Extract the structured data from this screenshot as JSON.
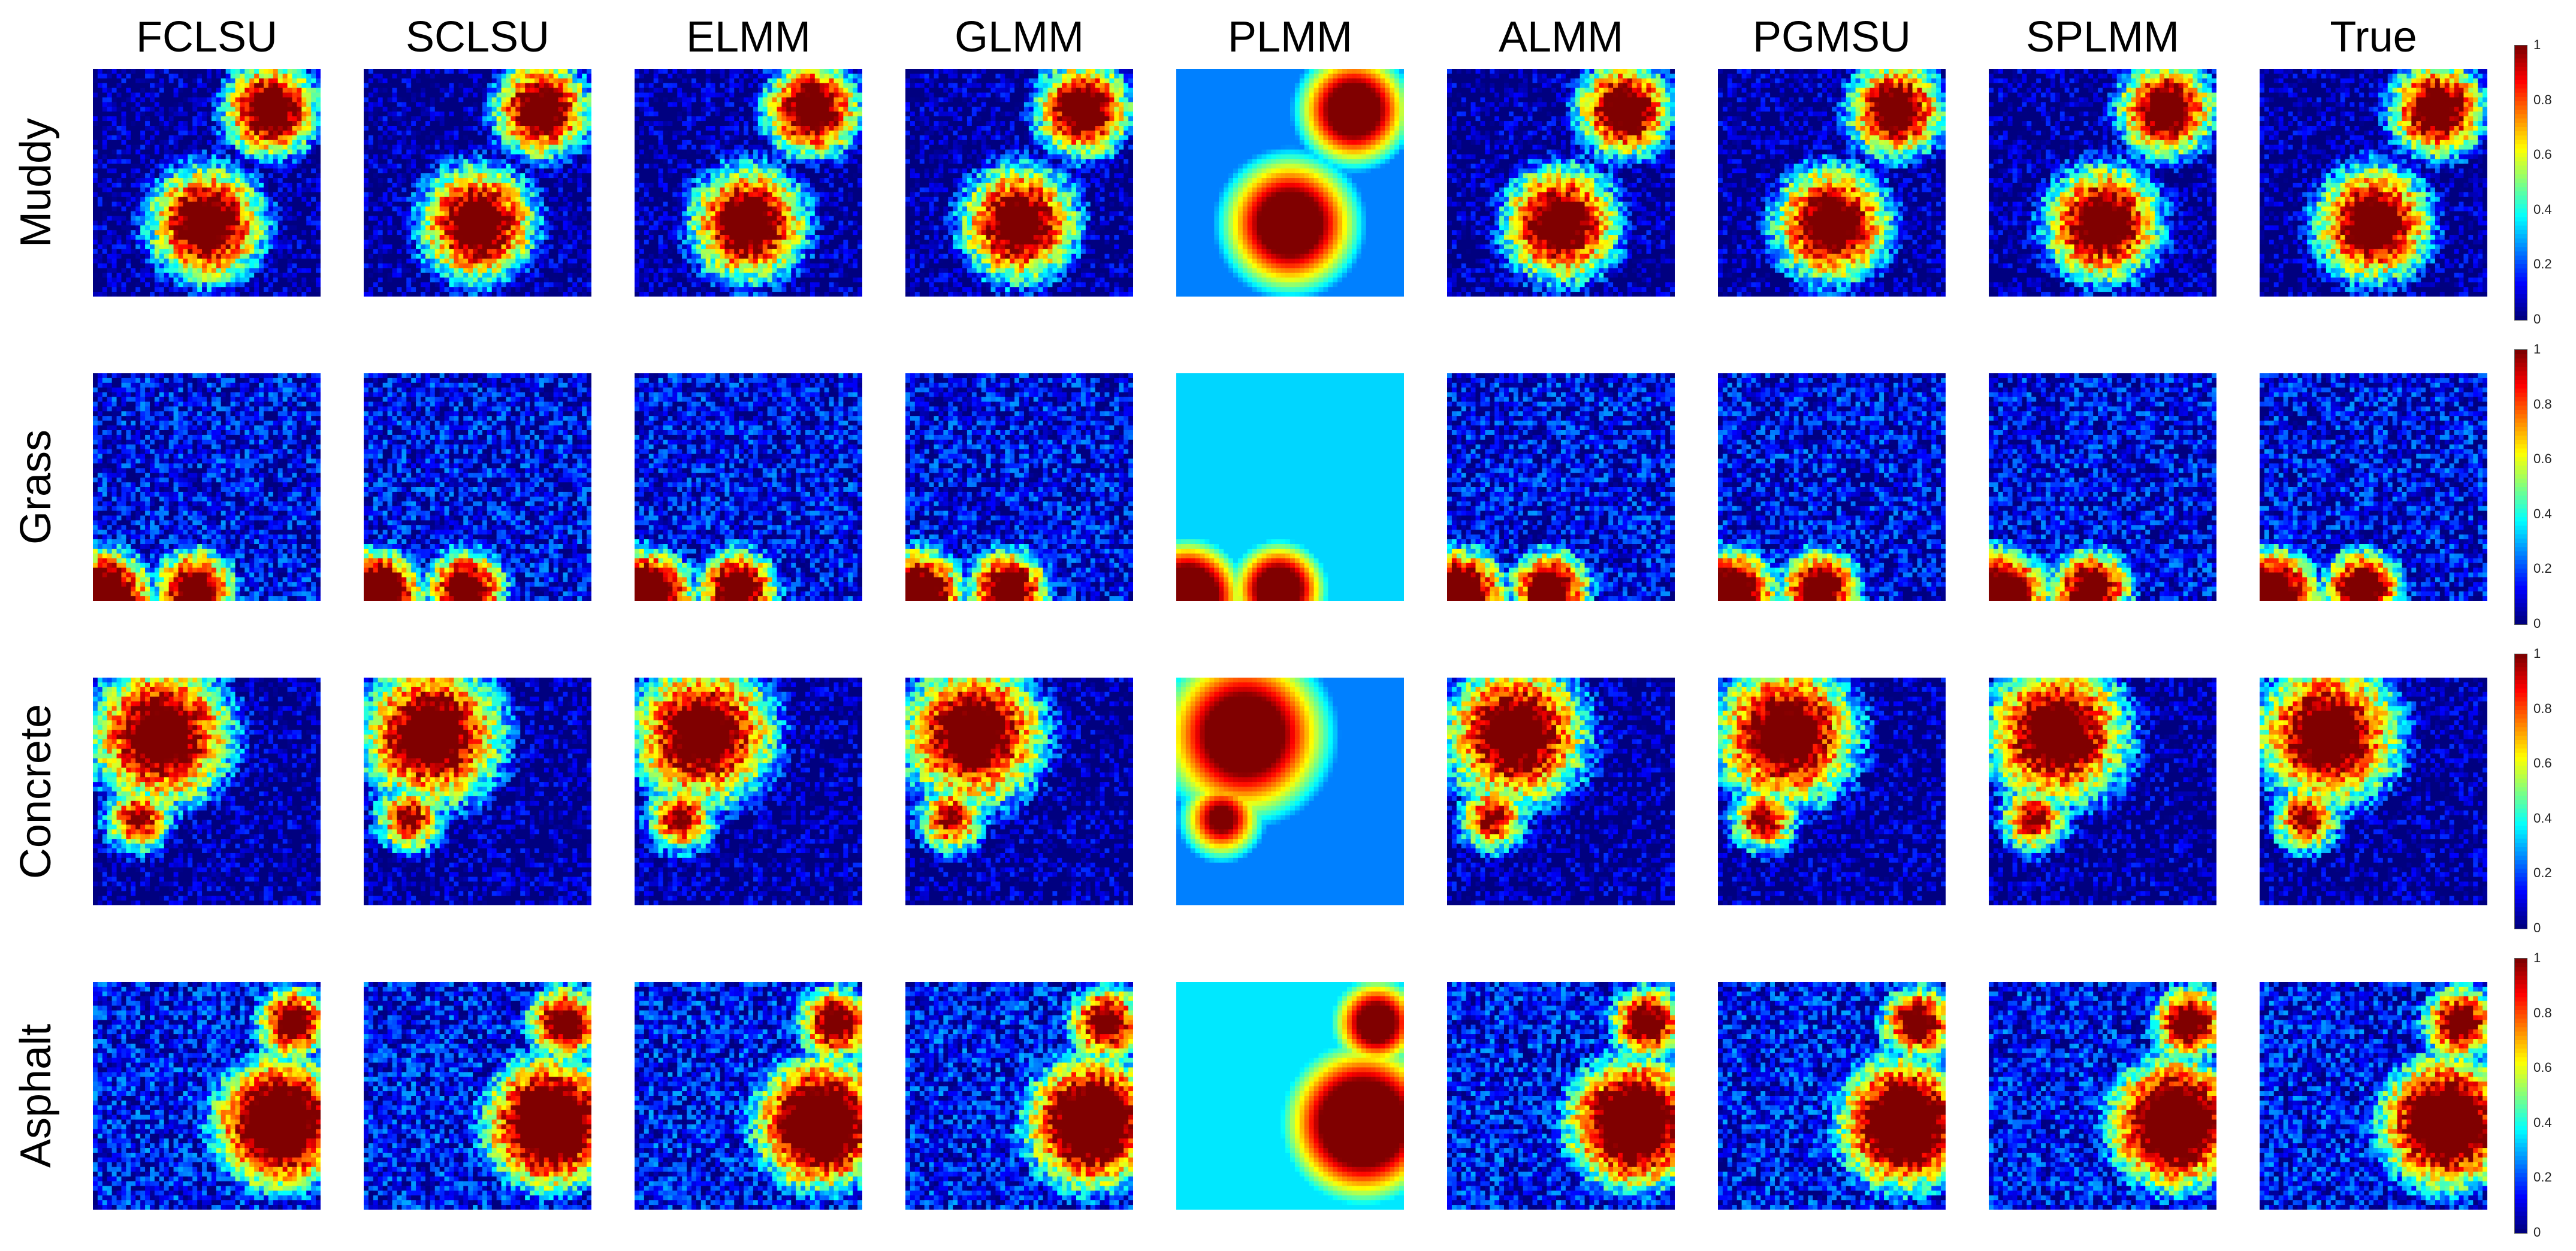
{
  "columns": [
    "FCLSU",
    "SCLSU",
    "ELMM",
    "GLMM",
    "PLMM",
    "ALMM",
    "PGMSU",
    "SPLMM",
    "True"
  ],
  "rows": [
    "Muddy",
    "Grass",
    "Concrete",
    "Asphalt"
  ],
  "colorbar": {
    "colormap": "jet",
    "ticks": [
      "0",
      "0.2",
      "0.4",
      "0.6",
      "0.8",
      "1"
    ],
    "range": [
      0,
      1
    ]
  }
}
